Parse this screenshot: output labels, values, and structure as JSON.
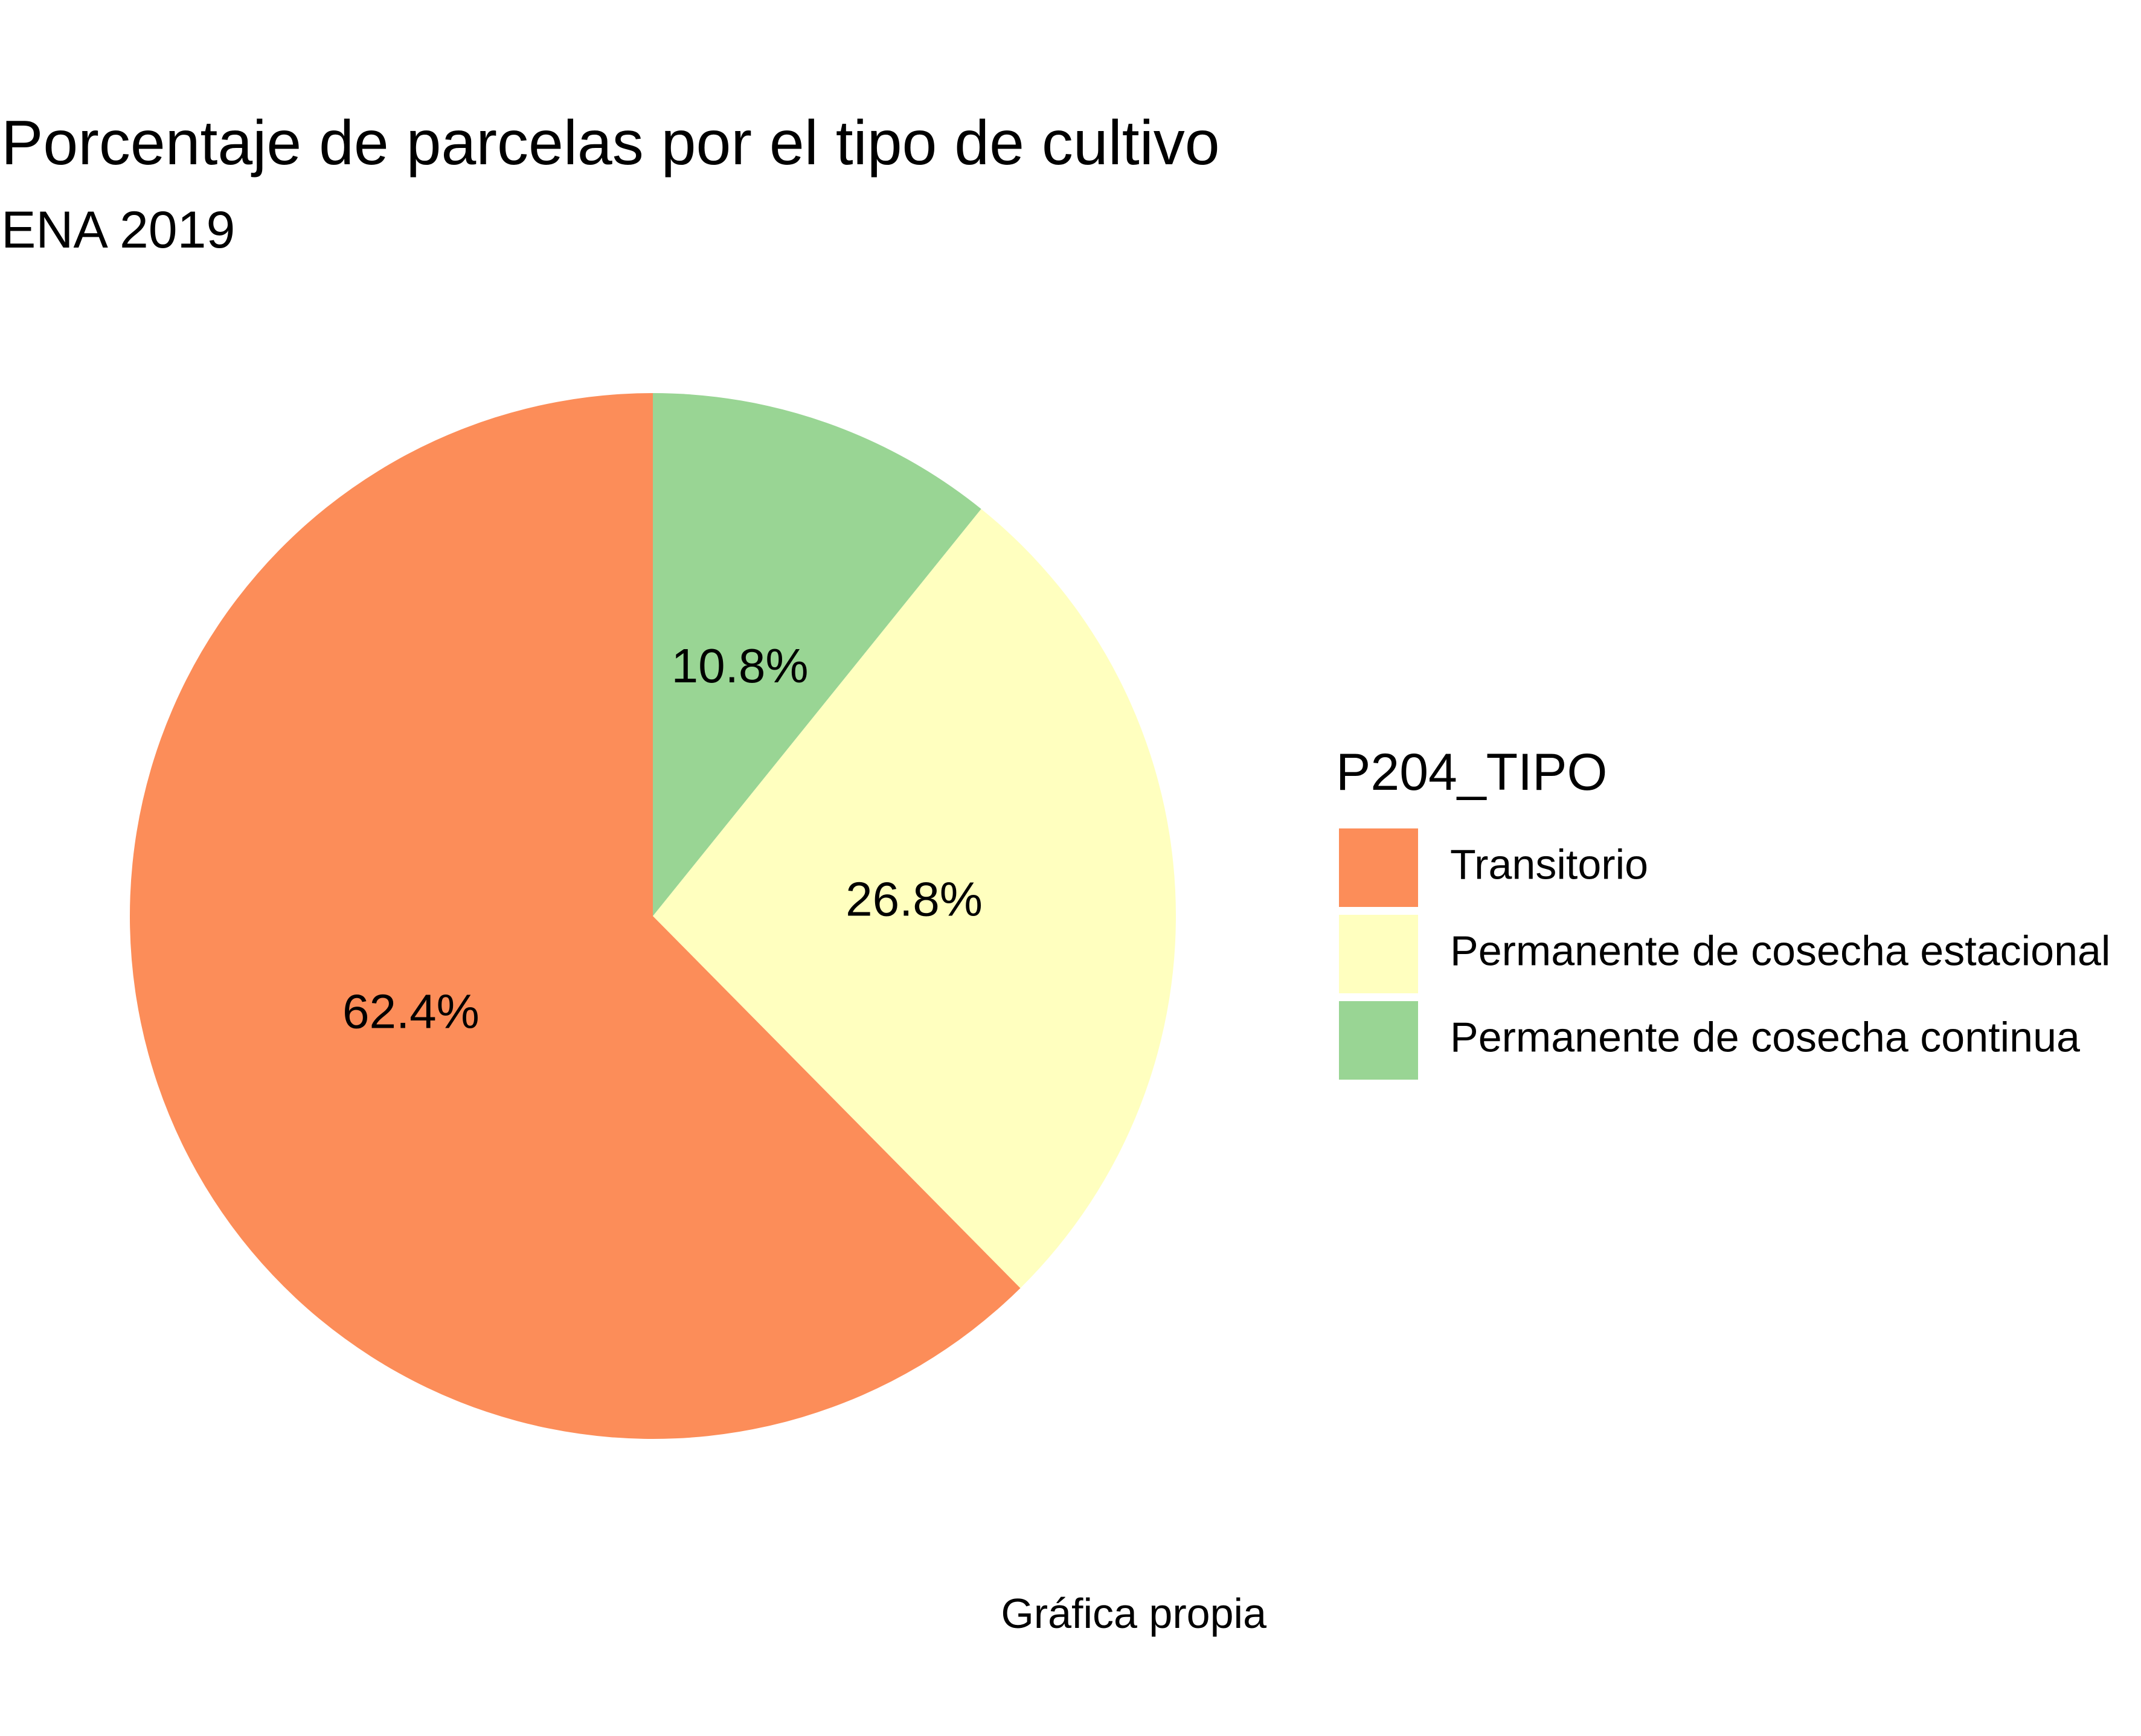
{
  "chart_data": {
    "type": "pie",
    "title": "Porcentaje de parcelas por el tipo de cultivo",
    "subtitle": "ENA 2019",
    "caption": "Gráfica propia",
    "legend_title": "P204_TIPO",
    "legend_position": "right",
    "start_angle": "12 o'clock",
    "direction": "counterclockwise",
    "slices": [
      {
        "label": "Transitorio",
        "value": 62.4,
        "value_label": "62.4%",
        "color": "#FC8D59"
      },
      {
        "label": "Permanente de cosecha estacional",
        "value": 26.8,
        "value_label": "26.8%",
        "color": "#FFFFBF"
      },
      {
        "label": "Permanente de cosecha continua",
        "value": 10.8,
        "value_label": "10.8%",
        "color": "#99D594"
      }
    ]
  }
}
